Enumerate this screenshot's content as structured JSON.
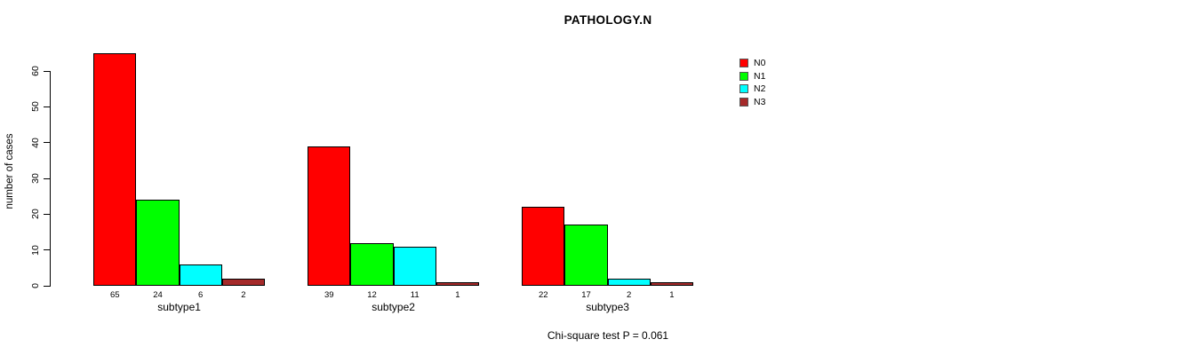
{
  "title": "PATHOLOGY.N",
  "footnote": "Chi-square test P = 0.061",
  "y_axis": {
    "label": "number of cases"
  },
  "chart_data": {
    "type": "bar",
    "title": "PATHOLOGY.N",
    "xlabel": "",
    "ylabel": "number of cases",
    "categories": [
      "subtype1",
      "subtype2",
      "subtype3"
    ],
    "series": [
      {
        "name": "N0",
        "color": "#FF0000",
        "values": [
          65,
          39,
          22
        ]
      },
      {
        "name": "N1",
        "color": "#00FF00",
        "values": [
          24,
          12,
          17
        ]
      },
      {
        "name": "N2",
        "color": "#00FFFF",
        "values": [
          6,
          11,
          2
        ]
      },
      {
        "name": "N3",
        "color": "#A52A2A",
        "values": [
          2,
          1,
          1
        ]
      }
    ],
    "ylim": [
      0,
      60
    ],
    "yticks": [
      0,
      10,
      20,
      30,
      40,
      50,
      60
    ],
    "grid": false,
    "legend_position": "top-right",
    "bar_value_labels": true,
    "annotation": "Chi-square test P = 0.061"
  }
}
